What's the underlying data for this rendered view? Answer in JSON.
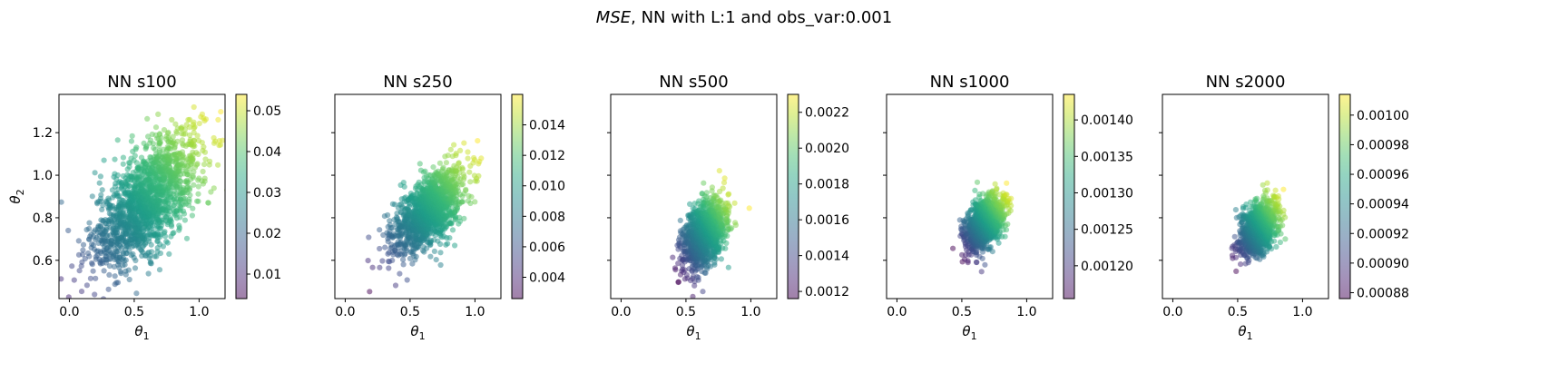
{
  "figure": {
    "suptitle_mse": "MSE",
    "suptitle_rest": ", NN with L:1 and obs_var:0.001"
  },
  "chart_data": [
    {
      "type": "scatter",
      "title": "NN s100",
      "xlabel": "θ1",
      "ylabel": "θ2",
      "xlim": [
        -0.08,
        1.2
      ],
      "ylim": [
        0.42,
        1.38
      ],
      "xticks": [
        "0.0",
        "0.5",
        "1.0"
      ],
      "xtick_values": [
        0.0,
        0.5,
        1.0
      ],
      "yticks": [
        "0.6",
        "0.8",
        "1.0",
        "1.2"
      ],
      "ytick_values": [
        0.6,
        0.8,
        1.0,
        1.2
      ],
      "cloud": {
        "center": [
          0.6,
          0.88
        ],
        "sd": [
          0.21,
          0.16
        ],
        "corr": 0.65,
        "n": 1600
      },
      "colorbar": {
        "min": 0.004,
        "max": 0.054,
        "ticks": [
          "0.01",
          "0.02",
          "0.03",
          "0.04",
          "0.05"
        ],
        "tick_values": [
          0.01,
          0.02,
          0.03,
          0.04,
          0.05
        ]
      },
      "colormap": "viridis",
      "alpha": 0.5
    },
    {
      "type": "scatter",
      "title": "NN s250",
      "xlabel": "θ1",
      "ylabel": "",
      "xlim": [
        -0.08,
        1.2
      ],
      "ylim": [
        0.42,
        1.38
      ],
      "xticks": [
        "0.0",
        "0.5",
        "1.0"
      ],
      "xtick_values": [
        0.0,
        0.5,
        1.0
      ],
      "yticks": [],
      "ytick_values": [
        0.6,
        0.8,
        1.0,
        1.2
      ],
      "cloud": {
        "center": [
          0.64,
          0.83
        ],
        "sd": [
          0.14,
          0.1
        ],
        "corr": 0.6,
        "n": 1300
      },
      "colorbar": {
        "min": 0.0026,
        "max": 0.016,
        "ticks": [
          "0.004",
          "0.006",
          "0.008",
          "0.010",
          "0.012",
          "0.014"
        ],
        "tick_values": [
          0.004,
          0.006,
          0.008,
          0.01,
          0.012,
          0.014
        ]
      },
      "colormap": "viridis",
      "alpha": 0.5
    },
    {
      "type": "scatter",
      "title": "NN s500",
      "xlabel": "θ1",
      "ylabel": "",
      "xlim": [
        -0.08,
        1.2
      ],
      "ylim": [
        0.42,
        1.38
      ],
      "xticks": [
        "0.0",
        "0.5",
        "1.0"
      ],
      "xtick_values": [
        0.0,
        0.5,
        1.0
      ],
      "yticks": [],
      "ytick_values": [
        0.6,
        0.8,
        1.0,
        1.2
      ],
      "cloud": {
        "center": [
          0.64,
          0.72
        ],
        "sd": [
          0.085,
          0.085
        ],
        "corr": 0.45,
        "n": 1100
      },
      "colorbar": {
        "min": 0.00116,
        "max": 0.0023,
        "ticks": [
          "0.0012",
          "0.0014",
          "0.0016",
          "0.0018",
          "0.0020",
          "0.0022"
        ],
        "tick_values": [
          0.0012,
          0.0014,
          0.0016,
          0.0018,
          0.002,
          0.0022
        ]
      },
      "colormap": "viridis",
      "alpha": 0.5
    },
    {
      "type": "scatter",
      "title": "NN s1000",
      "xlabel": "θ1",
      "ylabel": "",
      "xlim": [
        -0.08,
        1.2
      ],
      "ylim": [
        0.42,
        1.38
      ],
      "xticks": [
        "0.0",
        "0.5",
        "1.0"
      ],
      "xtick_values": [
        0.0,
        0.5,
        1.0
      ],
      "yticks": [],
      "ytick_values": [
        0.6,
        0.8,
        1.0,
        1.2
      ],
      "cloud": {
        "center": [
          0.67,
          0.77
        ],
        "sd": [
          0.075,
          0.065
        ],
        "corr": 0.45,
        "n": 1100
      },
      "colorbar": {
        "min": 0.001155,
        "max": 0.001435,
        "ticks": [
          "0.00120",
          "0.00125",
          "0.00130",
          "0.00135",
          "0.00140"
        ],
        "tick_values": [
          0.0012,
          0.00125,
          0.0013,
          0.00135,
          0.0014
        ]
      },
      "colormap": "viridis",
      "alpha": 0.5
    },
    {
      "type": "scatter",
      "title": "NN s2000",
      "xlabel": "θ1",
      "ylabel": "",
      "xlim": [
        -0.08,
        1.2
      ],
      "ylim": [
        0.42,
        1.38
      ],
      "xticks": [
        "0.0",
        "0.5",
        "1.0"
      ],
      "xtick_values": [
        0.0,
        0.5,
        1.0
      ],
      "yticks": [],
      "ytick_values": [
        0.6,
        0.8,
        1.0,
        1.2
      ],
      "cloud": {
        "center": [
          0.66,
          0.75
        ],
        "sd": [
          0.07,
          0.065
        ],
        "corr": 0.4,
        "n": 1100
      },
      "colorbar": {
        "min": 0.000876,
        "max": 0.001014,
        "ticks": [
          "0.00088",
          "0.00090",
          "0.00092",
          "0.00094",
          "0.00096",
          "0.00098",
          "0.00100"
        ],
        "tick_values": [
          0.00088,
          0.0009,
          0.00092,
          0.00094,
          0.00096,
          0.00098,
          0.001
        ]
      },
      "colormap": "viridis",
      "alpha": 0.5
    }
  ]
}
